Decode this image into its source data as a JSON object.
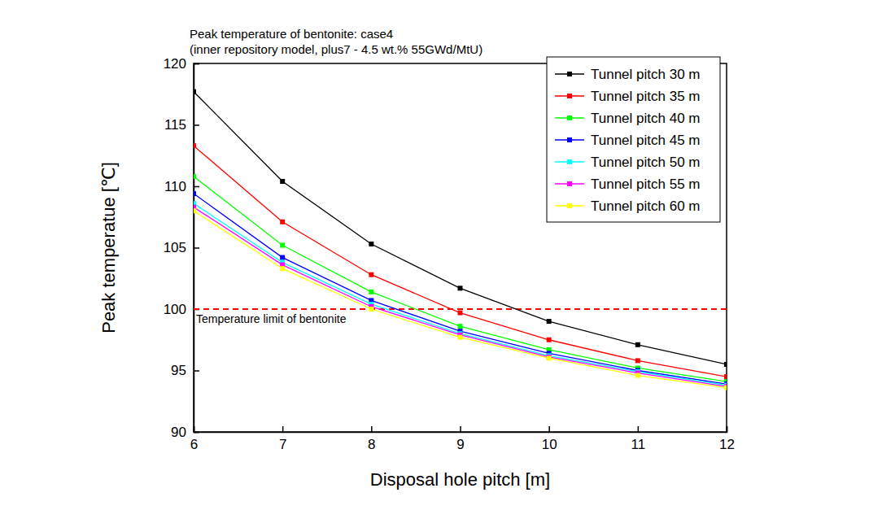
{
  "chart_data": {
    "type": "line",
    "title": "Peak temperature of bentonite: case4",
    "subtitle": "(inner repository model, plus7 - 4.5 wt.% 55GWd/MtU)",
    "x_label": "Disposal hole pitch [m]",
    "y_label": "Peak temperatue [℃]",
    "x": [
      6,
      7,
      8,
      9,
      10,
      11,
      12
    ],
    "xlim": [
      6,
      12
    ],
    "xticks": [
      6,
      7,
      8,
      9,
      10,
      11,
      12
    ],
    "ylim": [
      90,
      120
    ],
    "yticks": [
      90,
      95,
      100,
      105,
      110,
      115,
      120
    ],
    "grid": false,
    "legend": "upper right",
    "marker": "square",
    "series": [
      {
        "name": "Tunnel pitch 30 m",
        "color": "#000000",
        "values": [
          117.7,
          110.4,
          105.3,
          101.7,
          99.0,
          97.1,
          95.5
        ]
      },
      {
        "name": "Tunnel pitch 35 m",
        "color": "#ff0000",
        "values": [
          113.3,
          107.1,
          102.8,
          99.7,
          97.5,
          95.8,
          94.5
        ]
      },
      {
        "name": "Tunnel pitch 40 m",
        "color": "#00ff00",
        "values": [
          110.8,
          105.2,
          101.4,
          98.6,
          96.7,
          95.2,
          94.1
        ]
      },
      {
        "name": "Tunnel pitch 45 m",
        "color": "#0000ff",
        "values": [
          109.4,
          104.2,
          100.7,
          98.2,
          96.4,
          95.0,
          93.9
        ]
      },
      {
        "name": "Tunnel pitch 50 m",
        "color": "#00ffff",
        "values": [
          108.6,
          103.8,
          100.4,
          98.0,
          96.2,
          94.9,
          93.8
        ]
      },
      {
        "name": "Tunnel pitch 55 m",
        "color": "#ff00ff",
        "values": [
          108.3,
          103.6,
          100.2,
          97.9,
          96.1,
          94.8,
          93.7
        ]
      },
      {
        "name": "Tunnel pitch 60 m",
        "color": "#ffff00",
        "values": [
          108.0,
          103.3,
          100.0,
          97.7,
          96.0,
          94.6,
          93.6
        ]
      }
    ],
    "annotations": [
      {
        "text": "Temperature limit of bentonite",
        "y": 100,
        "color": "#ff0000",
        "line_style": "dashed"
      }
    ]
  }
}
